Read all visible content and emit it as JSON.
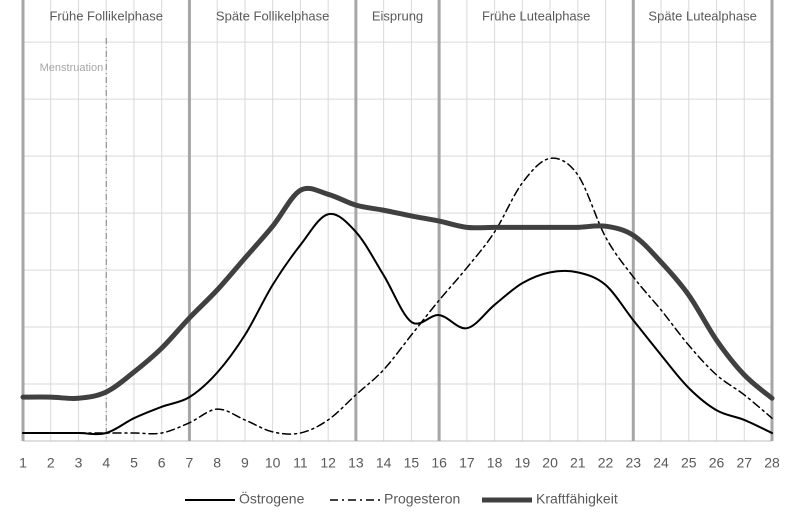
{
  "chart_data": {
    "type": "line",
    "x": [
      1,
      2,
      3,
      4,
      5,
      6,
      7,
      8,
      9,
      10,
      11,
      12,
      13,
      14,
      15,
      16,
      17,
      18,
      19,
      20,
      21,
      22,
      23,
      24,
      25,
      26,
      27,
      28
    ],
    "xlim": [
      1,
      28
    ],
    "xticks": [
      1,
      2,
      3,
      4,
      5,
      6,
      7,
      8,
      9,
      10,
      11,
      12,
      13,
      14,
      15,
      16,
      17,
      18,
      19,
      20,
      21,
      22,
      23,
      24,
      25,
      26,
      27,
      28
    ],
    "ylim": [
      0,
      7.74
    ],
    "ygrid": [
      1,
      2,
      3,
      4,
      5,
      6,
      7
    ],
    "grid": true,
    "phases": [
      {
        "label": "Frühe Follikelphase",
        "start": 1,
        "end": 7
      },
      {
        "label": "Späte Follikelphase",
        "start": 7,
        "end": 13
      },
      {
        "label": "Eisprung",
        "start": 13,
        "end": 16
      },
      {
        "label": "Frühe Lutealphase",
        "start": 16,
        "end": 23
      },
      {
        "label": "Späte Lutealphase",
        "start": 23,
        "end": 28
      }
    ],
    "marker": {
      "label": "Menstruation",
      "x": 4
    },
    "series": [
      {
        "name": "Östrogene",
        "color": "#000000",
        "style": "solid",
        "values": [
          0.14,
          0.14,
          0.14,
          0.14,
          0.4,
          0.6,
          0.77,
          1.2,
          1.86,
          2.74,
          3.44,
          3.98,
          3.67,
          2.91,
          2.09,
          2.21,
          1.98,
          2.39,
          2.77,
          2.96,
          2.96,
          2.74,
          2.12,
          1.51,
          0.93,
          0.54,
          0.37,
          0.14
        ]
      },
      {
        "name": "Progesteron",
        "color": "#000000",
        "style": "dash-dot",
        "values": [
          0.14,
          0.14,
          0.14,
          0.14,
          0.14,
          0.14,
          0.32,
          0.56,
          0.37,
          0.16,
          0.14,
          0.37,
          0.81,
          1.25,
          1.86,
          2.47,
          3.04,
          3.67,
          4.53,
          4.96,
          4.67,
          3.58,
          2.88,
          2.3,
          1.68,
          1.16,
          0.81,
          0.4
        ]
      },
      {
        "name": "Kraftfähigkeit",
        "color": "#404040",
        "style": "bold",
        "values": [
          0.77,
          0.77,
          0.75,
          0.86,
          1.21,
          1.63,
          2.16,
          2.65,
          3.21,
          3.77,
          4.4,
          4.33,
          4.14,
          4.05,
          3.95,
          3.86,
          3.75,
          3.75,
          3.75,
          3.75,
          3.75,
          3.77,
          3.61,
          3.14,
          2.56,
          1.77,
          1.16,
          0.75
        ]
      }
    ]
  }
}
